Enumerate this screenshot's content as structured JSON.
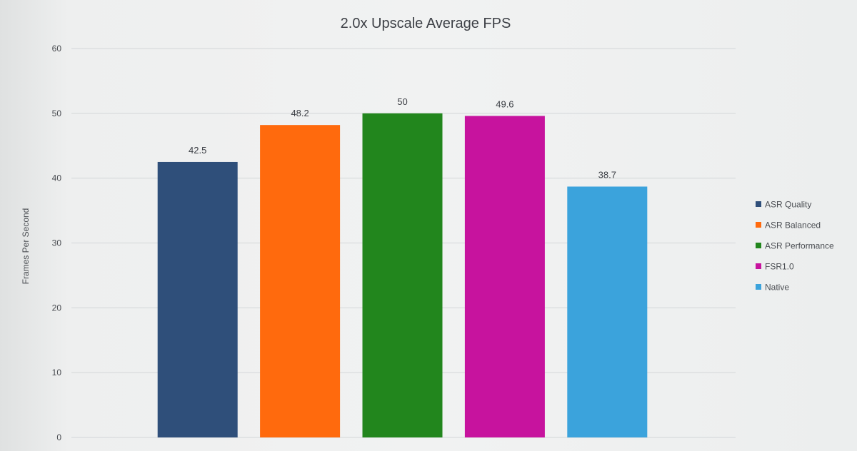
{
  "chart_data": {
    "type": "bar",
    "title": "2.0x Upscale Average FPS",
    "xlabel": "",
    "ylabel": "Frames Per Second",
    "ylim": [
      0,
      60
    ],
    "yticks": [
      0,
      10,
      20,
      30,
      40,
      50,
      60
    ],
    "grid": true,
    "legend_position": "right",
    "series": [
      {
        "name": "ASR Quality",
        "value": 42.5,
        "label": "42.5",
        "color": "#2f4f7a"
      },
      {
        "name": "ASR Balanced",
        "value": 48.2,
        "label": "48.2",
        "color": "#ff6a0d"
      },
      {
        "name": "ASR Performance",
        "value": 50,
        "label": "50",
        "color": "#22861d"
      },
      {
        "name": "FSR1.0",
        "value": 49.6,
        "label": "49.6",
        "color": "#c7139e"
      },
      {
        "name": "Native",
        "value": 38.7,
        "label": "38.7",
        "color": "#3ba3dc"
      }
    ]
  }
}
